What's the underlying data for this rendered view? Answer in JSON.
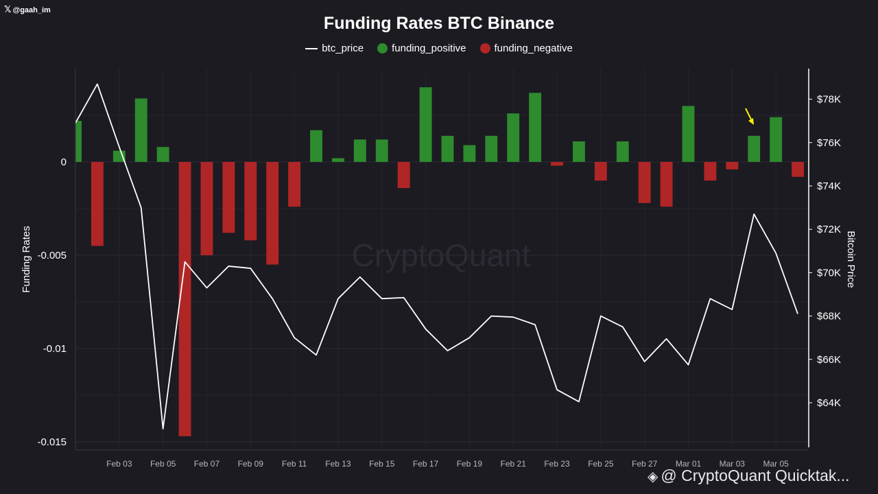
{
  "header": {
    "handle": "@gaah_im",
    "x_logo_icon": "x-logo-icon"
  },
  "footer": {
    "text": "@ CryptoQuant Quicktak...",
    "icon": "binance-logo-icon"
  },
  "watermark": "CryptoQuant",
  "colors": {
    "background": "#1c1b22",
    "positive": "#2e8b2e",
    "negative": "#b02626",
    "price_line": "#ffffff",
    "arrow": "#ffee00"
  },
  "chart_data": {
    "type": "bar",
    "title": "Funding Rates BTC Binance",
    "ylabel": "Funding Rates",
    "y2label": "Bitcoin Price",
    "legend": [
      "btc_price",
      "funding_positive",
      "funding_negative"
    ],
    "legend_placement": "top-center",
    "grid": true,
    "ylim": [
      -0.0152,
      0.005
    ],
    "y2lim": [
      62000,
      79500
    ],
    "y_ticks": [
      {
        "value": 0,
        "label": "0"
      },
      {
        "value": -0.005,
        "label": "-0.005"
      },
      {
        "value": -0.01,
        "label": "-0.01"
      },
      {
        "value": -0.015,
        "label": "-0.015"
      }
    ],
    "y2_ticks": [
      {
        "value": 78000,
        "label": "$78K"
      },
      {
        "value": 76000,
        "label": "$76K"
      },
      {
        "value": 74000,
        "label": "$74K"
      },
      {
        "value": 72000,
        "label": "$72K"
      },
      {
        "value": 70000,
        "label": "$70K"
      },
      {
        "value": 68000,
        "label": "$68K"
      },
      {
        "value": 66000,
        "label": "$66K"
      },
      {
        "value": 64000,
        "label": "$64K"
      }
    ],
    "x_ticks": [
      "Feb 03",
      "Feb 05",
      "Feb 07",
      "Feb 09",
      "Feb 11",
      "Feb 13",
      "Feb 15",
      "Feb 17",
      "Feb 19",
      "Feb 21",
      "Feb 23",
      "Feb 25",
      "Feb 27",
      "Mar 01",
      "Mar 03",
      "Mar 05"
    ],
    "dates": [
      "2025-02-01",
      "2025-02-02",
      "2025-02-03",
      "2025-02-04",
      "2025-02-05",
      "2025-02-06",
      "2025-02-07",
      "2025-02-08",
      "2025-02-09",
      "2025-02-10",
      "2025-02-11",
      "2025-02-12",
      "2025-02-13",
      "2025-02-14",
      "2025-02-15",
      "2025-02-16",
      "2025-02-17",
      "2025-02-18",
      "2025-02-19",
      "2025-02-20",
      "2025-02-21",
      "2025-02-22",
      "2025-02-23",
      "2025-02-24",
      "2025-02-25",
      "2025-02-26",
      "2025-02-27",
      "2025-02-28",
      "2025-03-01",
      "2025-03-02",
      "2025-03-03",
      "2025-03-04",
      "2025-03-05",
      "2025-03-06"
    ],
    "series": [
      {
        "name": "funding_rate",
        "values": [
          0.0022,
          -0.0045,
          0.0006,
          0.0034,
          0.0008,
          -0.0147,
          -0.005,
          -0.0038,
          -0.0042,
          -0.0055,
          -0.0024,
          0.0017,
          0.0002,
          0.0012,
          0.0012,
          -0.0014,
          0.004,
          0.0014,
          0.0009,
          0.0014,
          0.0026,
          0.0037,
          -0.0002,
          0.0011,
          -0.001,
          0.0011,
          -0.0022,
          -0.0024,
          0.003,
          -0.001,
          -0.0004,
          0.0014,
          0.0024,
          -0.0008
        ]
      },
      {
        "name": "btc_price",
        "values": [
          76900,
          78700,
          75800,
          73000,
          62800,
          70500,
          69300,
          70300,
          70200,
          68800,
          67000,
          66200,
          68800,
          69800,
          68800,
          68850,
          67400,
          66400,
          67000,
          68000,
          67950,
          67600,
          64600,
          64050,
          68000,
          67500,
          65900,
          66950,
          65750,
          68800,
          68300,
          72700,
          70900,
          68100
        ]
      }
    ]
  }
}
